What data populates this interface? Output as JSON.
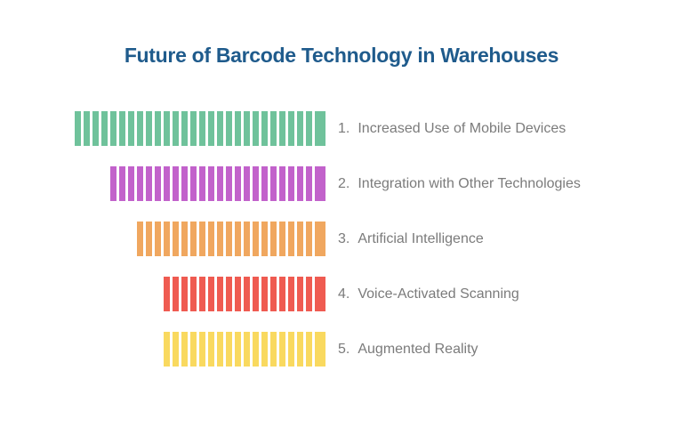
{
  "title": {
    "text": "Future of Barcode Technology in Warehouses",
    "color": "#1f5b8c"
  },
  "list": {
    "text_color": "#7b7b7b",
    "items": [
      {
        "number": "1.",
        "label": "Increased Use of Mobile Devices",
        "color": "#6fc29b",
        "bars": 28
      },
      {
        "number": "2.",
        "label": "Integration with Other Technologies",
        "color": "#c262cb",
        "bars": 24
      },
      {
        "number": "3.",
        "label": "Artificial Intelligence",
        "color": "#f0a75f",
        "bars": 21
      },
      {
        "number": "4.",
        "label": "Voice-Activated Scanning",
        "color": "#ef5b51",
        "bars": 18
      },
      {
        "number": "5.",
        "label": "Augmented Reality",
        "color": "#f9d95f",
        "bars": 18
      }
    ]
  }
}
